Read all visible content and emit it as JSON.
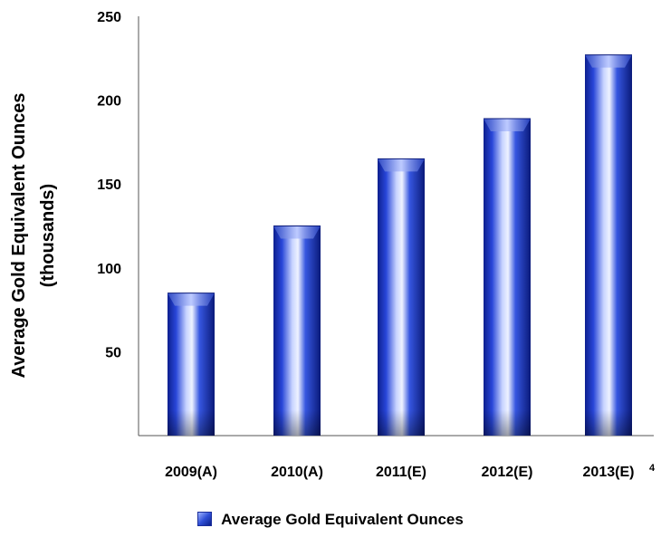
{
  "chart_data": {
    "type": "bar",
    "categories": [
      "2009(A)",
      "2010(A)",
      "2011(E)",
      "2012(E)",
      "2013(E)"
    ],
    "series": [
      {
        "name": "Average Gold Equivalent Ounces",
        "values": [
          85,
          125,
          165,
          189,
          227
        ]
      }
    ],
    "ylabel_lines": [
      "Average Gold Equivalent Ounces",
      "(thousands)"
    ],
    "yticks": [
      50,
      100,
      150,
      200,
      250
    ],
    "ylim": [
      0,
      250
    ],
    "grid": false,
    "legend_position": "bottom",
    "bar_color": "#2f4fd6",
    "footnote": "4"
  }
}
